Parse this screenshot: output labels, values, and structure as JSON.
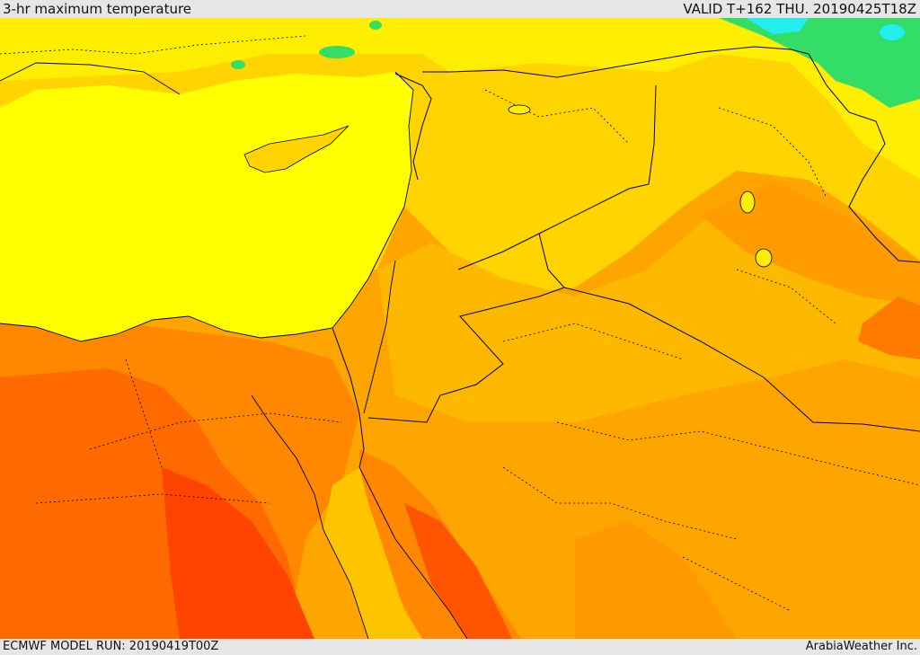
{
  "header": {
    "title": "3-hr maximum temperature",
    "valid": "VALID T+162 THU. 20190425T18Z"
  },
  "footer": {
    "model_run": "ECMWF MODEL RUN: 20190419T00Z",
    "credit": "ArabiaWeather Inc."
  },
  "map": {
    "colors": {
      "sea": "#ffff00",
      "cool_green": "#33dd66",
      "cyan": "#22eeee",
      "light_yellow": "#ffee00",
      "warm_yellow": "#ffd400",
      "orange_light": "#ffb800",
      "orange": "#ffa500",
      "orange_deep": "#ff8800",
      "red_orange": "#ff6a00",
      "red": "#ff4400",
      "border": "#000000"
    }
  }
}
